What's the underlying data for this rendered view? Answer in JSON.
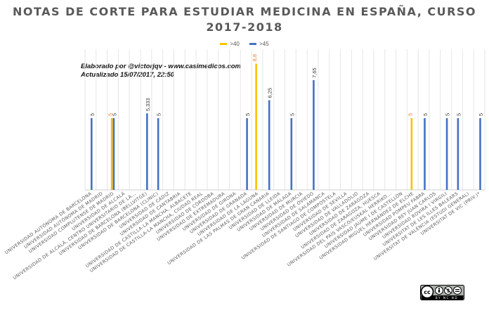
{
  "title_lines": [
    "NOTAS DE CORTE PARA ESTUDIAR MEDICINA EN ESPAÑA, CURSO",
    "2017-2018"
  ],
  "legend": [
    {
      "label": ">40",
      "color": "#FFC000"
    },
    {
      "label": ">45",
      "color": "#4472C4"
    }
  ],
  "credits": {
    "line1": "Elaborado por @victorjqv - www.casimedicos.com",
    "line2": "Actualizado 15/07/2017, 22:50"
  },
  "license_badge": {
    "text": "BY NC ND"
  },
  "chart_data": {
    "type": "bar",
    "categories": [
      "UNIVERSIDAD AUTÓNOMA DE BARCELONA",
      "UNIVERSIDAD AUTÓNOMA DE MADRID",
      "UNIVERSIDAD COMPLUTENSE DE MADRID",
      "UNIVERSIDAD DE ALCALÁ",
      "UNIVERSIDAD DE ALCALÁ, CENTRO UNIVERSITARIO DE LA...",
      "UNIVERSIDAD DE BARCELONA (BELLVITGE)",
      "UNIVERSIDAD DE BARCELONA (CLINIC)",
      "UNIVERSIDAD DE CÁDIZ",
      "UNIVERSIDAD DE CANTABRIA",
      "UNIVERSIDAD DE CASTILLA-LA MANCHA, ALBACETE",
      "UNIVERSIDAD DE CASTILLA-LA MANCHA, CIUDAD REAL",
      "UNIVERSIDAD DE CÓRDOBA",
      "UNIVERSIDAD DE EXTREMADURA",
      "UNIVERSIDAD DE GIRONA",
      "UNIVERSIDAD DE GRANADA",
      "UNIVERSIDAD DE LA LAGUNA",
      "UNIVERSIDAD DE LAS PALMAS DE GRAN CANARIA",
      "UNIVERSIDAD DE LLEIDA",
      "UNIVERSIDAD DE MÁLAGA",
      "UNIVERSIDAD DE MURCIA",
      "UNIVERSIDAD DE OVIEDO",
      "UNIVERSIDAD DE SALAMANCA",
      "UNIVERSIDAD DE SANTIAGO DE COMPOSTELA",
      "UNIVERSIDAD DE SEVILLA",
      "UNIVERSIDAD DE VALLADOLID",
      "UNIVERSIDAD DE ZARAGOZA",
      "UNIVERSIDAD DE ZARAGOZA, HUESCA",
      "UNIVERSIDAD DEL PAÍS VASCO/EUSKAL HERRIKO...",
      "UNIVERSIDAD JAUME I DE CASTELLÓN",
      "UNIVERSIDAD MIGUEL HERNÁNDEZ DE ELCHE",
      "UNIVERSIDAD POMPEU FABRA",
      "UNIVERSIDAD REY JUAN CARLOS",
      "UNIVERSIDAD ROVIRA I VIRGILI",
      "UNIVERSITAT DE LES ILLES BALEARS",
      "UNIVERSITAT DE VALÈNCIA (ESTUDI GENERAL)",
      "UNIVERSITAT DE VIC (PRIV.)*"
    ],
    "series": [
      {
        "name": ">40",
        "color": "#FFC000",
        "values": [
          null,
          null,
          5,
          null,
          null,
          null,
          null,
          null,
          null,
          null,
          null,
          null,
          null,
          null,
          null,
          8.8,
          null,
          null,
          null,
          null,
          null,
          null,
          null,
          null,
          null,
          null,
          null,
          null,
          null,
          5,
          null,
          null,
          null,
          null,
          null,
          null
        ]
      },
      {
        "name": ">45",
        "color": "#4472C4",
        "values": [
          5,
          null,
          5,
          null,
          null,
          5.333,
          5,
          null,
          null,
          null,
          null,
          null,
          null,
          null,
          5,
          null,
          6.25,
          null,
          5,
          null,
          7.65,
          null,
          null,
          null,
          null,
          null,
          null,
          null,
          null,
          null,
          5,
          null,
          5,
          5,
          null,
          5
        ]
      }
    ],
    "data_labels": {
      ">40": [
        "",
        "",
        "5",
        "",
        "",
        "",
        "",
        "",
        "",
        "",
        "",
        "",
        "",
        "",
        "",
        "8,8",
        "",
        "",
        "",
        "",
        "",
        "",
        "",
        "",
        "",
        "",
        "",
        "",
        "",
        "5",
        "",
        "",
        "",
        "",
        "",
        ""
      ],
      ">45": [
        "5",
        "",
        "5",
        "",
        "",
        "5,333",
        "5",
        "",
        "",
        "",
        "",
        "",
        "",
        "",
        "5",
        "",
        "6,25",
        "",
        "5",
        "",
        "7,65",
        "",
        "",
        "",
        "",
        "",
        "",
        "",
        "",
        "",
        "5",
        "",
        "5",
        "5",
        "",
        "5"
      ]
    },
    "ylim": [
      0,
      9.8
    ],
    "grid": "vertical",
    "legend_position": "top-center"
  }
}
